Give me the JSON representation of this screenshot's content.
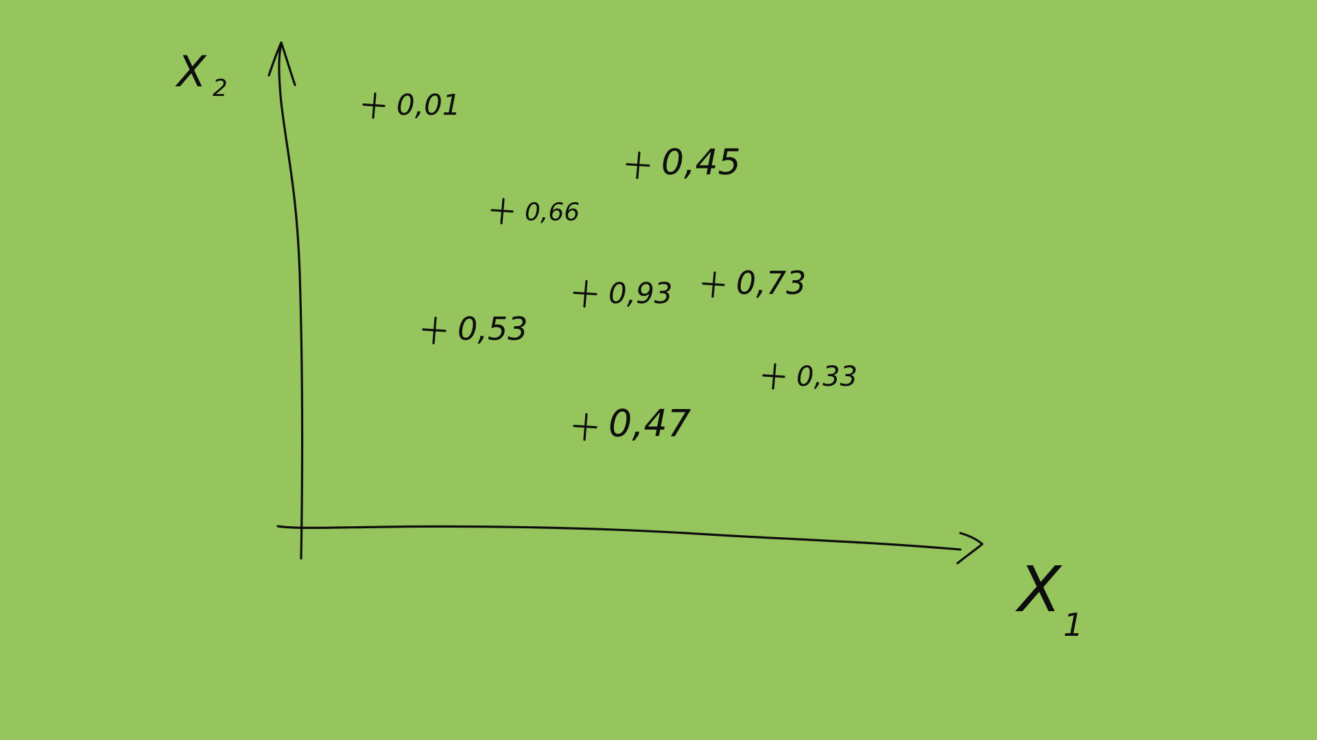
{
  "background_color": "#95c55c",
  "ink_color": "#0d0d0d",
  "axes": {
    "x_label": "X",
    "x_subscript": "1",
    "y_label": "X",
    "y_subscript": "2"
  },
  "points": [
    {
      "x1": 1.5,
      "x2": 9.2,
      "value": "0,01"
    },
    {
      "x1": 5.0,
      "x2": 7.9,
      "value": "0,45"
    },
    {
      "x1": 3.2,
      "x2": 6.9,
      "value": "0,66"
    },
    {
      "x1": 4.3,
      "x2": 5.1,
      "value": "0,93"
    },
    {
      "x1": 6.0,
      "x2": 5.3,
      "value": "0,73"
    },
    {
      "x1": 2.3,
      "x2": 4.3,
      "value": "0,53"
    },
    {
      "x1": 6.8,
      "x2": 3.3,
      "value": "0,33"
    },
    {
      "x1": 4.3,
      "x2": 2.2,
      "value": "0,47"
    }
  ]
}
